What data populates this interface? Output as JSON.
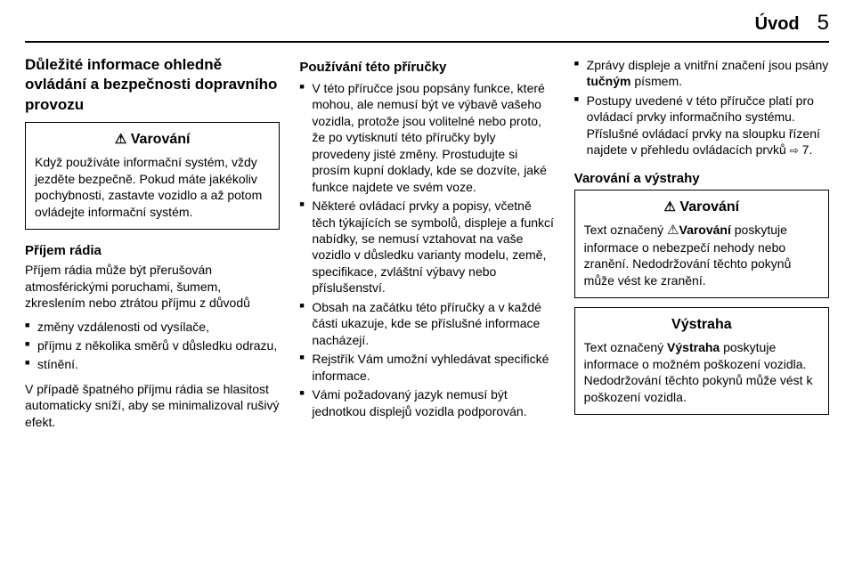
{
  "header": {
    "title": "Úvod",
    "page": "5"
  },
  "col1": {
    "h2": "Důležité informace ohledně ovládání a bezpečnosti dopravního provozu",
    "warn_box": {
      "icon": "⚠",
      "title": "Varování",
      "body": "Když používáte informační systém, vždy jezděte bezpečně. Pokud máte jakékoliv pochybnosti, zastavte vozidlo a až potom ovládejte informační systém."
    },
    "h3_radio": "Příjem rádia",
    "radio_intro": "Příjem rádia může být přerušován atmosférickými poruchami, šumem, zkreslením nebo ztrátou příjmu z důvodů",
    "radio_list": [
      "změny vzdálenosti od vysílače,",
      "příjmu z několika směrů v důsledku odrazu,",
      "stínění."
    ],
    "radio_after": "V případě špatného příjmu rádia se hlasitost automaticky sníží, aby se minimalizoval rušivý efekt."
  },
  "col2": {
    "h3_use": "Používání této příručky",
    "use_list": [
      "V této příručce jsou popsány funkce, které mohou, ale nemusí být ve výbavě vašeho vozidla, protože jsou volitelné nebo proto, že po vytisknutí této příručky byly provedeny jisté změny. Prostudujte si prosím kupní doklady, kde se dozvíte, jaké funkce najdete ve svém voze.",
      "Některé ovládací prvky a popisy, včetně těch týkajících se symbolů, displeje a funkcí nabídky, se nemusí vztahovat na vaše vozidlo v důsledku varianty modelu, země, specifikace, zvláštní výbavy nebo příslušenství.",
      "Obsah na začátku této příručky a v každé části ukazuje, kde se příslušné informace nacházejí.",
      "Rejstřík Vám umožní vyhledávat specifické informace.",
      "Vámi požadovaný jazyk nemusí být jednotkou displejů vozidla podporován."
    ]
  },
  "col3": {
    "top_list": [
      {
        "pre": "Zprávy displeje a vnitřní značení jsou psány ",
        "bold": "tučným",
        "post": " písmem."
      },
      {
        "pre": "Postupy uvedené v této příručce platí pro ovládací prvky informačního systému. Příslušné ovládací prvky na sloupku řízení najdete v přehledu ovládacích prvků ",
        "link_icon": "⇨",
        "link": "7",
        "post": "."
      }
    ],
    "h3_warn": "Varování a výstrahy",
    "warn_box": {
      "icon": "⚠",
      "title": "Varování",
      "body_pre": "Text označený ",
      "body_icon": "⚠",
      "body_bold": "Varování",
      "body_post": " poskytuje informace o nebezpečí nehody nebo zranění. Nedodržování těchto pokynů může vést ke zranění."
    },
    "caution_box": {
      "title": "Výstraha",
      "body_pre": "Text označený ",
      "body_bold": "Výstraha",
      "body_post": " poskytuje informace o možném poškození vozidla. Nedodržování těchto pokynů může vést k poškození vozidla."
    }
  }
}
